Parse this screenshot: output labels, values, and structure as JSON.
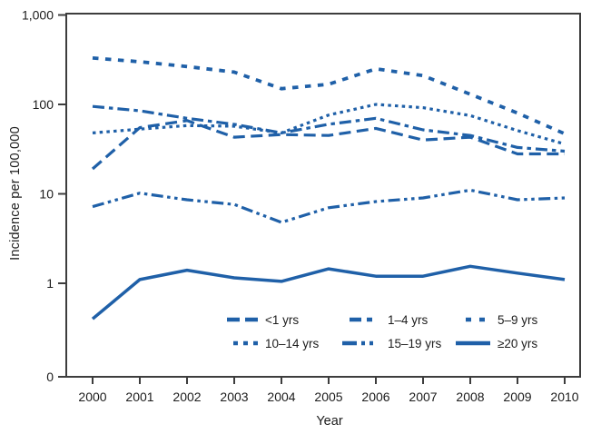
{
  "figure": {
    "background": "#ffffff"
  },
  "chart_data": {
    "type": "line",
    "title": "",
    "xlabel": "Year",
    "ylabel": "Incidence per 100,000",
    "y_scale": "log",
    "grid": false,
    "legend_position": "inside-bottom-center",
    "line_color": "#1f60a8",
    "axis_color": "#3d3d3d",
    "text_color": "#1c1c1c",
    "x": [
      2000,
      2001,
      2002,
      2003,
      2004,
      2005,
      2006,
      2007,
      2008,
      2009,
      2010
    ],
    "x_tick_labels": [
      "2000",
      "2001",
      "2002",
      "2003",
      "2004",
      "2005",
      "2006",
      "2007",
      "2008",
      "2009",
      "2010"
    ],
    "y_ticks": [
      {
        "label": "1,000",
        "value": 1000
      },
      {
        "label": "100",
        "value": 100
      },
      {
        "label": "10",
        "value": 10
      },
      {
        "label": "1",
        "value": 1
      },
      {
        "label": "0",
        "value": 0
      }
    ],
    "series": [
      {
        "name": "<1 yrs",
        "dash": "long-dash",
        "values": [
          19,
          55,
          66,
          43,
          46,
          45,
          54,
          40,
          43,
          28,
          28
        ]
      },
      {
        "name": "1–4 yrs",
        "dash": "dash-dot",
        "values": [
          95,
          85,
          70,
          60,
          48,
          60,
          70,
          52,
          45,
          33,
          30
        ]
      },
      {
        "name": "5–9 yrs",
        "dash": "sparse-square-dot",
        "values": [
          330,
          300,
          265,
          230,
          150,
          168,
          250,
          210,
          130,
          80,
          47
        ]
      },
      {
        "name": "10–14 yrs",
        "dash": "fine-dot",
        "values": [
          48,
          53,
          58,
          57,
          48,
          76,
          100,
          92,
          75,
          51,
          36
        ]
      },
      {
        "name": "15–19 yrs",
        "dash": "dash-dot-dot",
        "values": [
          7.2,
          10.2,
          8.6,
          7.6,
          4.8,
          7,
          8.2,
          9,
          11,
          8.6,
          9
        ]
      },
      {
        "name": "≥20 yrs",
        "dash": "solid",
        "values": [
          0.4,
          1.1,
          1.4,
          1.15,
          1.05,
          1.45,
          1.2,
          1.2,
          1.55,
          1.3,
          1.1
        ]
      }
    ]
  }
}
